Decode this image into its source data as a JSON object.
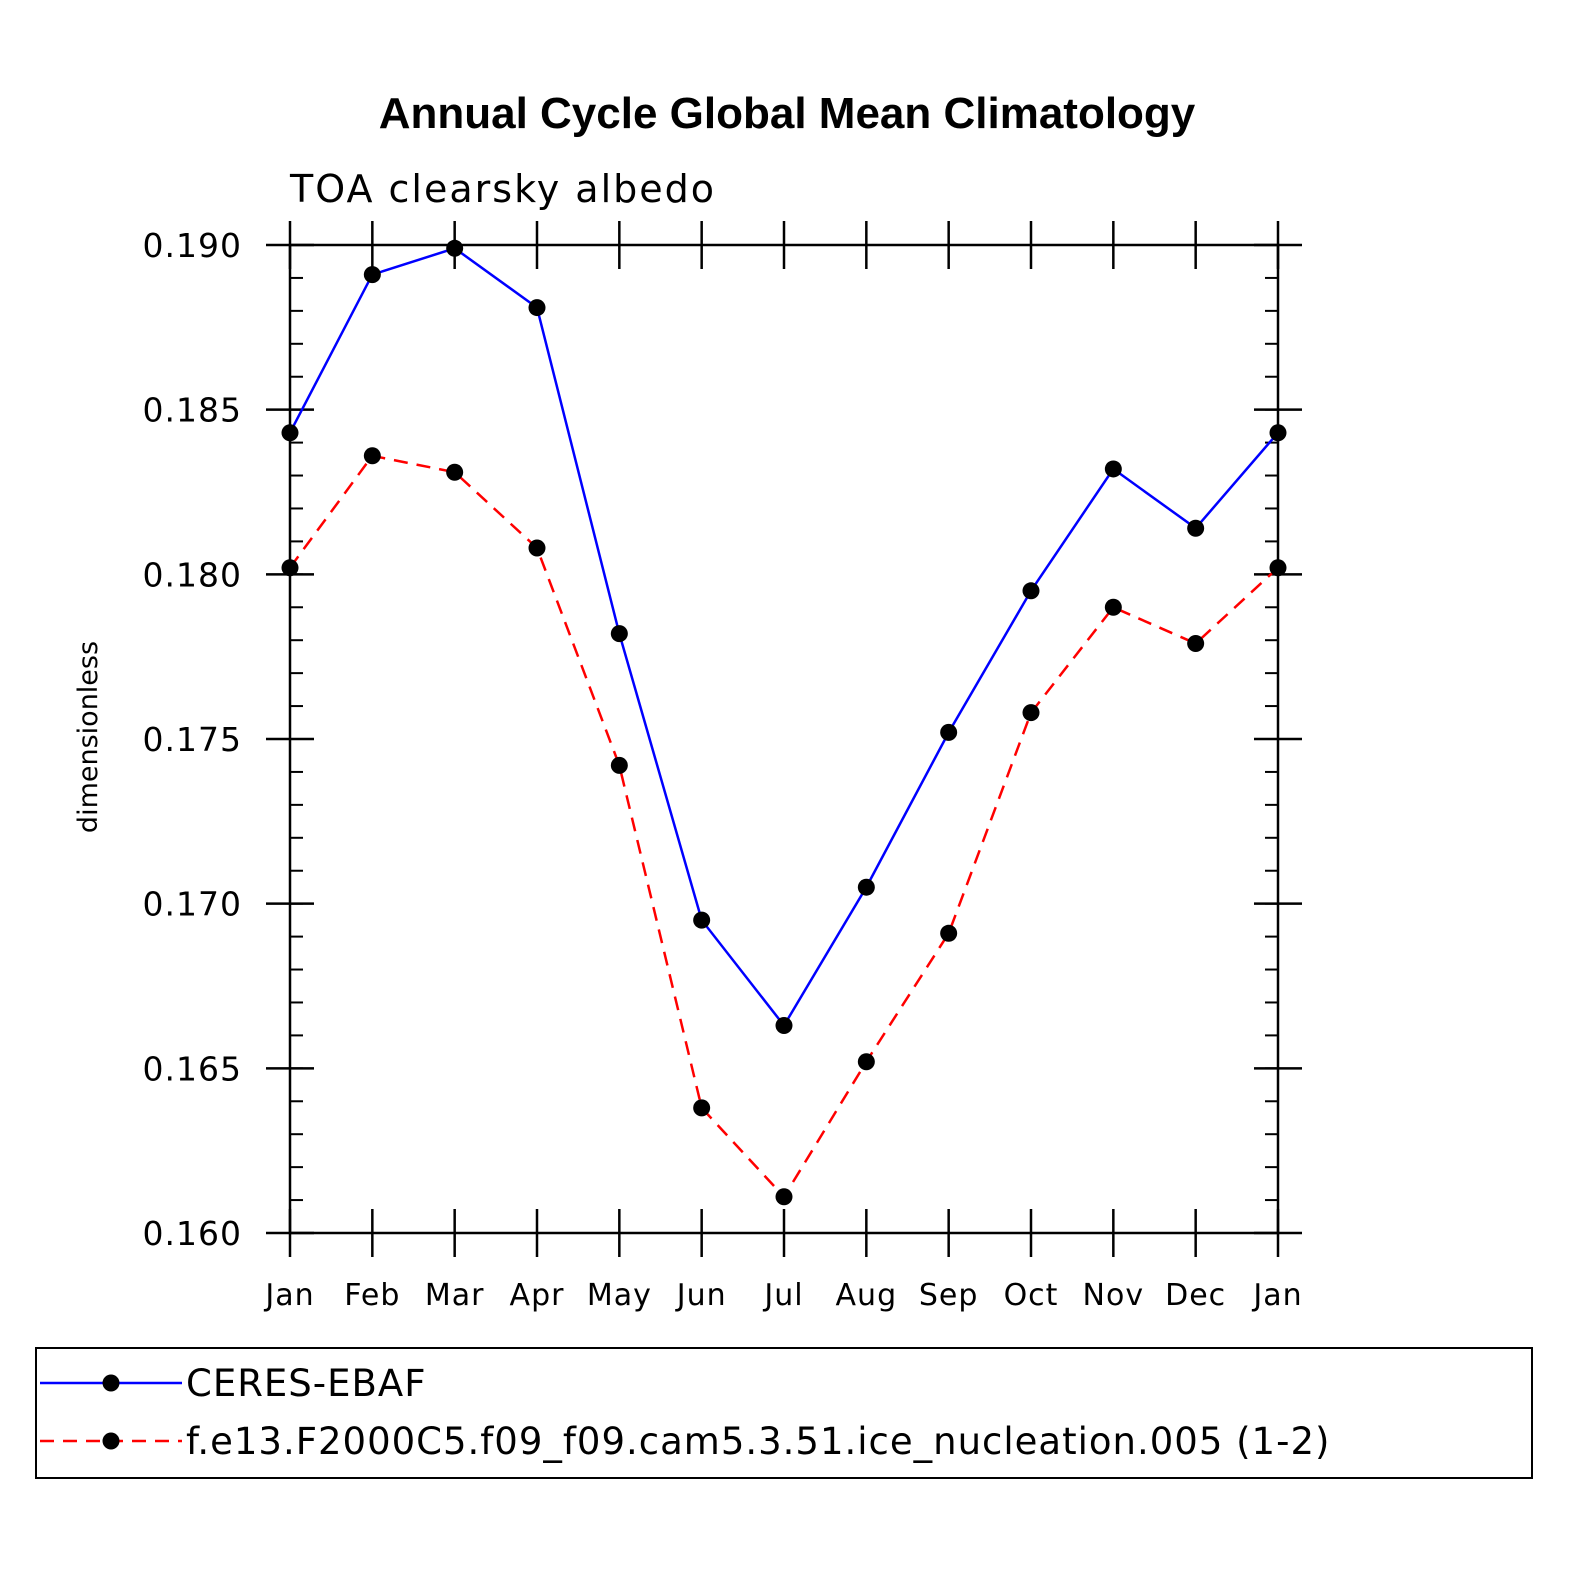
{
  "chart_data": {
    "type": "line",
    "title": "Annual Cycle Global Mean Climatology",
    "subtitle": "TOA clearsky albedo",
    "xlabel": "",
    "ylabel": "dimensionless",
    "categories": [
      "Jan",
      "Feb",
      "Mar",
      "Apr",
      "May",
      "Jun",
      "Jul",
      "Aug",
      "Sep",
      "Oct",
      "Nov",
      "Dec",
      "Jan"
    ],
    "ylim": [
      0.16,
      0.19
    ],
    "yticks": [
      "0.160",
      "0.165",
      "0.170",
      "0.175",
      "0.180",
      "0.185",
      "0.190"
    ],
    "ytick_values": [
      0.16,
      0.165,
      0.17,
      0.175,
      0.18,
      0.185,
      0.19
    ],
    "minor_tick_step": 0.001,
    "grid": false,
    "legend_position": "bottom",
    "series": [
      {
        "name": "CERES-EBAF",
        "color": "#0000ff",
        "line_style": "solid",
        "marker": "filled-circle",
        "values": [
          0.1843,
          0.1891,
          0.1899,
          0.1881,
          0.1782,
          0.1695,
          0.1663,
          0.1705,
          0.1752,
          0.1795,
          0.1832,
          0.1814,
          0.1843
        ]
      },
      {
        "name": "f.e13.F2000C5.f09_f09.cam5.3.51.ice_nucleation.005 (1-2)",
        "color": "#ff0000",
        "line_style": "dashed",
        "marker": "filled-circle",
        "values": [
          0.1802,
          0.1836,
          0.1831,
          0.1808,
          0.1742,
          0.1638,
          0.1611,
          0.1652,
          0.1691,
          0.1758,
          0.179,
          0.1779,
          0.1802
        ]
      }
    ]
  }
}
